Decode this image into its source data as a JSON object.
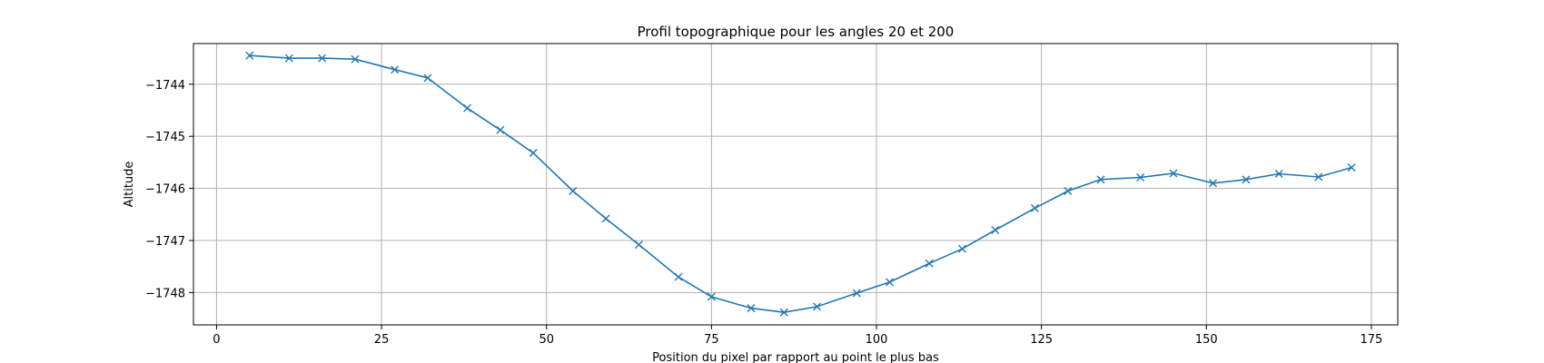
{
  "chart_data": {
    "type": "line",
    "title": "Profil topographique pour les angles 20 et 200",
    "xlabel": "Position du pixel par rapport au point le plus bas",
    "ylabel": "Altitude",
    "xlim": [
      -3.5,
      179
    ],
    "ylim": [
      -1748.62,
      -1743.22
    ],
    "xticks": [
      0,
      25,
      50,
      75,
      100,
      125,
      150,
      175
    ],
    "yticks": [
      -1744,
      -1745,
      -1746,
      -1747,
      -1748
    ],
    "grid": true,
    "marker": "x",
    "color": "#1f77b4",
    "series": [
      {
        "x": [
          5,
          11,
          16,
          21,
          27,
          32,
          38,
          43,
          48,
          54,
          59,
          64,
          70,
          75,
          81,
          86,
          91,
          97,
          102,
          108,
          113,
          118,
          124,
          129,
          134,
          140,
          145,
          151,
          156,
          161,
          167,
          172
        ],
        "y": [
          -1743.45,
          -1743.5,
          -1743.5,
          -1743.52,
          -1743.72,
          -1743.88,
          -1744.46,
          -1744.88,
          -1745.32,
          -1746.05,
          -1746.58,
          -1747.08,
          -1747.7,
          -1748.08,
          -1748.3,
          -1748.38,
          -1748.27,
          -1748.01,
          -1747.8,
          -1747.44,
          -1747.16,
          -1746.8,
          -1746.38,
          -1746.05,
          -1745.83,
          -1745.79,
          -1745.71,
          -1745.9,
          -1745.83,
          -1745.72,
          -1745.78,
          -1745.6
        ]
      }
    ]
  }
}
